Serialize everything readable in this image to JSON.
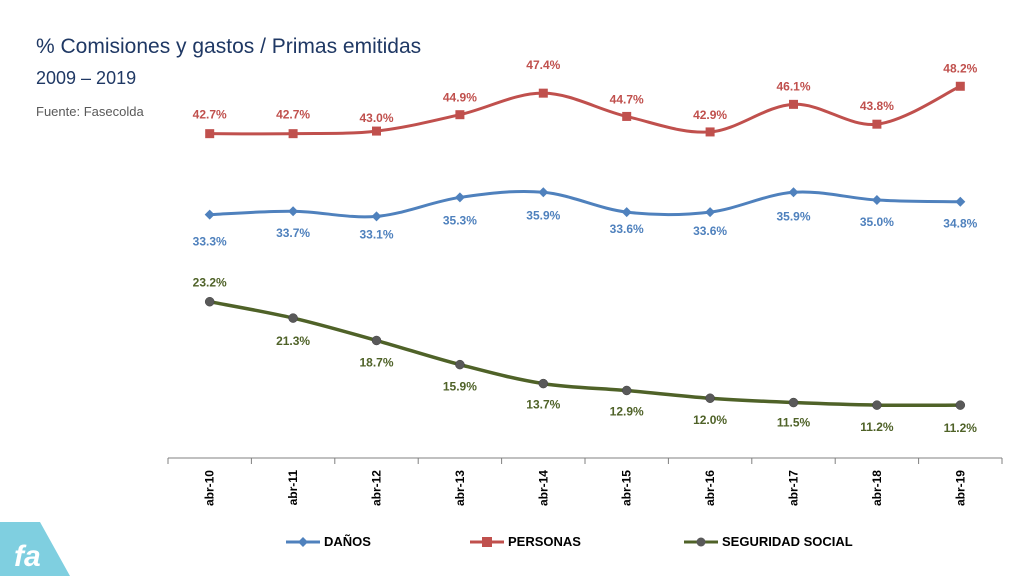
{
  "header": {
    "title": "% Comisiones y gastos / Primas emitidas",
    "subtitle": "2009 – 2019",
    "source": "Fuente: Fasecolda"
  },
  "logo": {
    "icon": "fasecolda-logo-icon",
    "color": "#7fcfe0"
  },
  "chart_data": {
    "type": "line",
    "categories": [
      "abr-10",
      "abr-11",
      "abr-12",
      "abr-13",
      "abr-14",
      "abr-15",
      "abr-16",
      "abr-17",
      "abr-18",
      "abr-19"
    ],
    "ylim": [
      0,
      60
    ],
    "legend_position": "bottom",
    "series": [
      {
        "name": "DAÑOS",
        "color": "#4f81bd",
        "marker": "diamond",
        "values": [
          33.3,
          33.7,
          33.1,
          35.3,
          35.9,
          33.6,
          33.6,
          35.9,
          35.0,
          34.8
        ],
        "labels": [
          "33.3%",
          "33.7%",
          "33.1%",
          "35.3%",
          "35.9%",
          "33.6%",
          "33.6%",
          "35.9%",
          "35.0%",
          "34.8%"
        ]
      },
      {
        "name": "PERSONAS",
        "color": "#c0504d",
        "marker": "square",
        "values": [
          42.7,
          42.7,
          43.0,
          44.9,
          47.4,
          44.7,
          42.9,
          46.1,
          43.8,
          48.2
        ],
        "labels": [
          "42.7%",
          "42.7%",
          "43.0%",
          "44.9%",
          "47.4%",
          "44.7%",
          "42.9%",
          "46.1%",
          "43.8%",
          "48.2%"
        ]
      },
      {
        "name": "SEGURIDAD SOCIAL",
        "color": "#4f6228",
        "marker": "circle",
        "values": [
          23.2,
          21.3,
          18.7,
          15.9,
          13.7,
          12.9,
          12.0,
          11.5,
          11.2,
          11.2
        ],
        "labels": [
          "23.2%",
          "21.3%",
          "18.7%",
          "15.9%",
          "13.7%",
          "12.9%",
          "12.0%",
          "11.5%",
          "11.2%",
          "11.2%"
        ]
      }
    ]
  }
}
